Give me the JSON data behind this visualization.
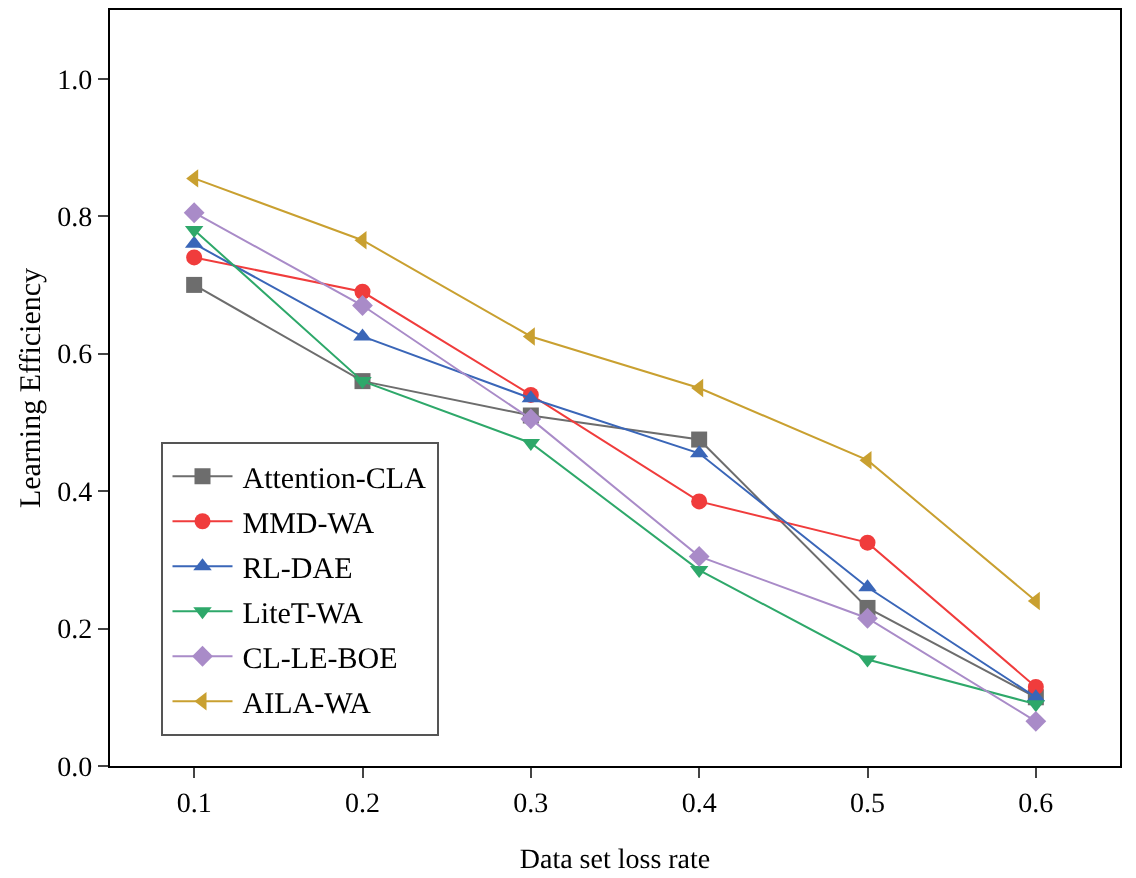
{
  "chart_data": {
    "type": "line",
    "xlabel": "Data set loss rate",
    "ylabel": "Learning Efficiency",
    "x": [
      0.1,
      0.2,
      0.3,
      0.4,
      0.5,
      0.6
    ],
    "xlim": [
      0.05,
      0.65
    ],
    "xticks": [
      0.1,
      0.2,
      0.3,
      0.4,
      0.5,
      0.6
    ],
    "ylim": [
      0,
      1.1
    ],
    "yticks": [
      {
        "value": 0,
        "label": "0.0"
      },
      0.2,
      0.4,
      0.6,
      0.8,
      {
        "value": 1,
        "label": "1.0"
      }
    ],
    "legend": "bottom left",
    "line_style": "solid",
    "series": [
      {
        "name": "Attention-CLA",
        "color": "#6d6d6d",
        "marker": "square",
        "values": [
          0.7,
          0.56,
          0.51,
          0.475,
          0.23,
          0.1
        ]
      },
      {
        "name": "MMD-WA",
        "color": "#f03c3c",
        "marker": "circle",
        "values": [
          0.74,
          0.69,
          0.54,
          0.385,
          0.325,
          0.115
        ]
      },
      {
        "name": "RL-DAE",
        "color": "#3a66b8",
        "marker": "triangle",
        "values": [
          0.76,
          0.625,
          0.535,
          0.455,
          0.26,
          0.1
        ]
      },
      {
        "name": "LiteT-WA",
        "color": "#2ea86a",
        "marker": "triangle-down",
        "values": [
          0.78,
          0.56,
          0.47,
          0.285,
          0.155,
          0.09
        ]
      },
      {
        "name": "CL-LE-BOE",
        "color": "#a98bc8",
        "marker": "diamond",
        "values": [
          0.805,
          0.67,
          0.505,
          0.305,
          0.215,
          0.065
        ]
      },
      {
        "name": "AILA-WA",
        "color": "#c9a030",
        "marker": "triangle-left",
        "values": [
          0.855,
          0.765,
          0.625,
          0.55,
          0.445,
          0.24
        ]
      }
    ]
  }
}
